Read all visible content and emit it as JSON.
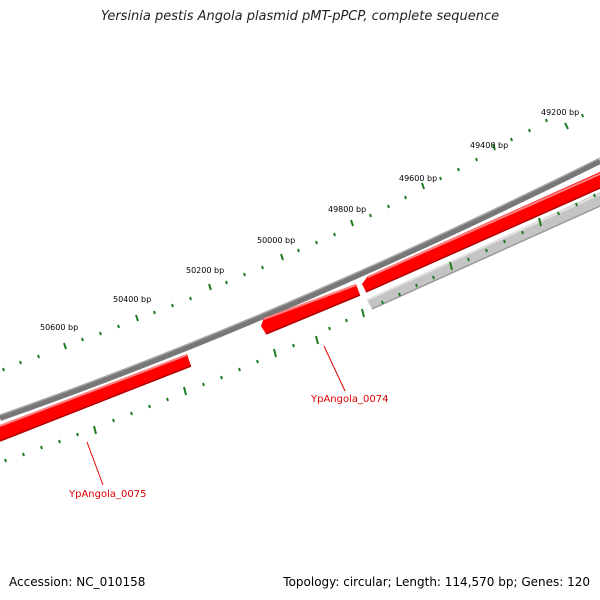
{
  "title": "Yersinia pestis Angola plasmid pMT-pPCP, complete sequence",
  "footer": {
    "accession": "Accession: NC_010158",
    "summary": "Topology: circular; Length: 114,570 bp; Genes: 120"
  },
  "ruler": {
    "labels": [
      "49200 bp",
      "49400 bp",
      "49600 bp",
      "49800 bp",
      "50000 bp",
      "50200 bp",
      "50400 bp",
      "50600 bp"
    ],
    "tick_color": "#1e7d1e",
    "label_color": "#000000"
  },
  "genes": [
    {
      "label": "YpAngola_0074",
      "color": "#ff0000"
    },
    {
      "label": "YpAngola_0075",
      "color": "#ff0000"
    }
  ],
  "colors": {
    "gene_forward": "#ff0000",
    "gene_highlight": "#ff8080",
    "backbone": "#777777",
    "backbone_light": "#c4c4c4"
  }
}
